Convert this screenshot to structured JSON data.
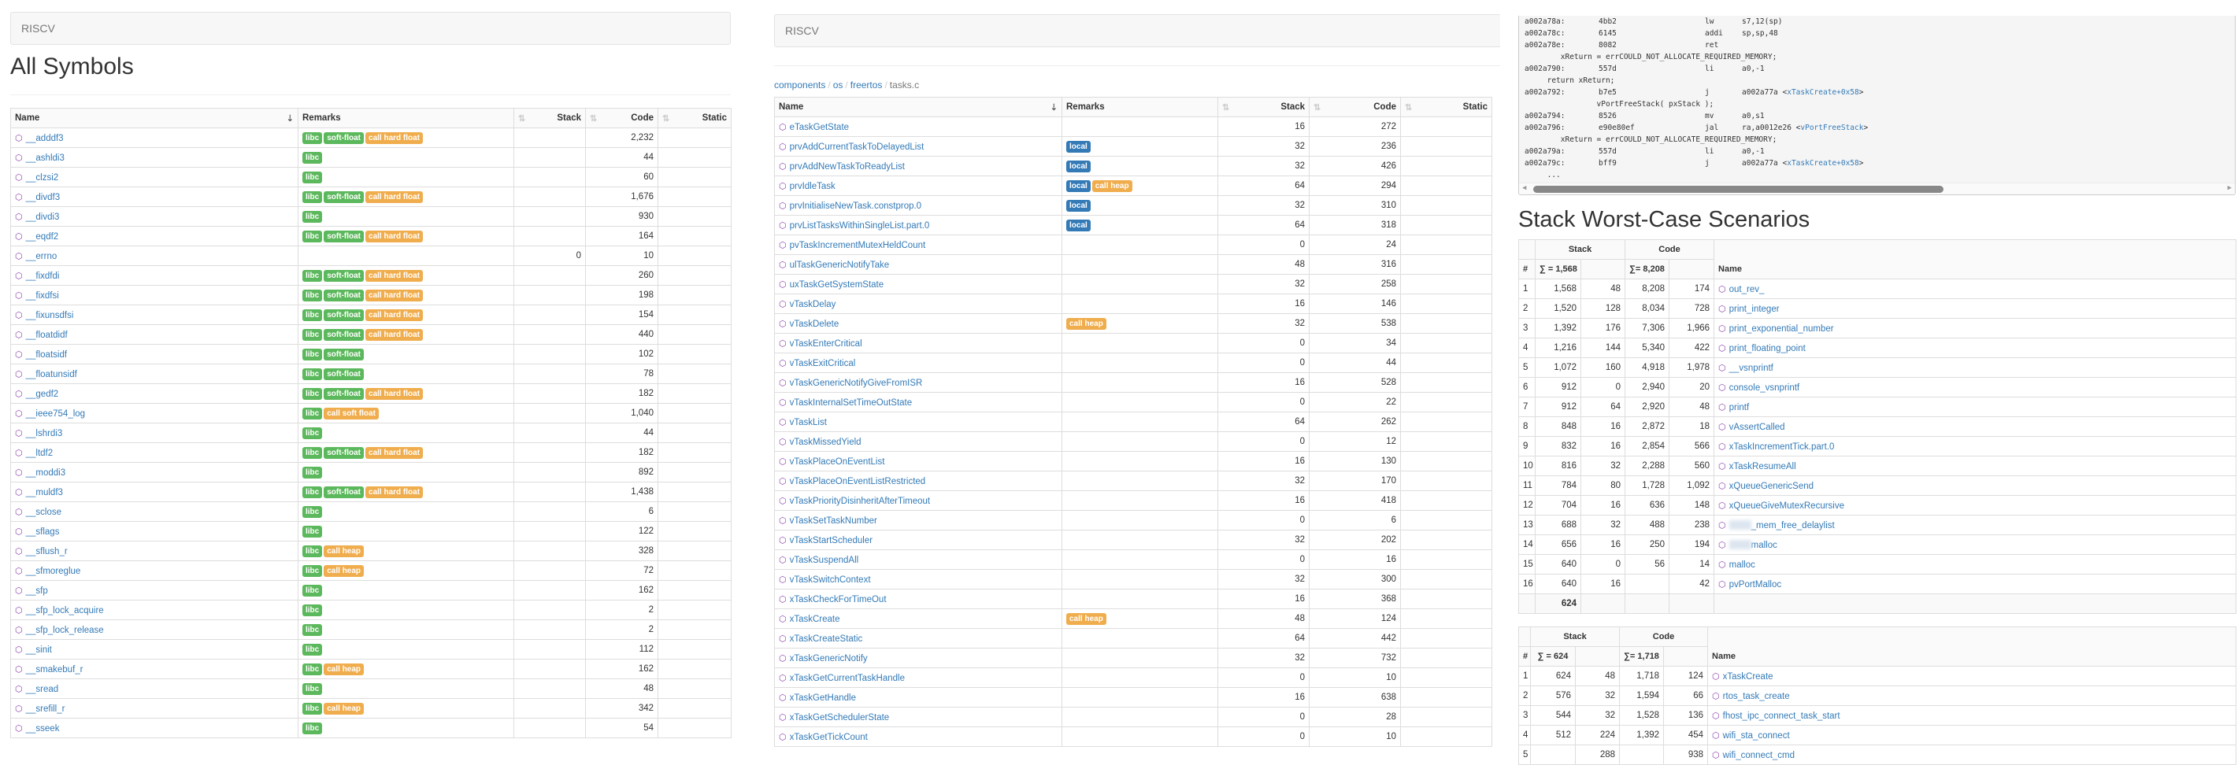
{
  "badge_colors": {
    "libc": "#5cb85c",
    "soft-float": "#5cb85c",
    "call hard float": "#f0ad4e",
    "call soft float": "#f0ad4e",
    "call heap": "#f0ad4e",
    "local": "#337ab7"
  },
  "link_color": "#337ab7",
  "icon_color": "#8e44ad",
  "left": {
    "brand": "RISCV",
    "title": "All Symbols",
    "columns": [
      "Name",
      "Remarks",
      "Stack",
      "Code",
      "Static"
    ],
    "rows": [
      [
        "__adddf3",
        [
          "libc",
          "soft-float",
          "call hard float"
        ],
        "",
        "2,232",
        ""
      ],
      [
        "__ashldi3",
        [
          "libc"
        ],
        "",
        "44",
        ""
      ],
      [
        "__clzsi2",
        [
          "libc"
        ],
        "",
        "60",
        ""
      ],
      [
        "__divdf3",
        [
          "libc",
          "soft-float",
          "call hard float"
        ],
        "",
        "1,676",
        ""
      ],
      [
        "__divdi3",
        [
          "libc"
        ],
        "",
        "930",
        ""
      ],
      [
        "__eqdf2",
        [
          "libc",
          "soft-float",
          "call hard float"
        ],
        "",
        "164",
        ""
      ],
      [
        "__errno",
        [],
        "0",
        "10",
        ""
      ],
      [
        "__fixdfdi",
        [
          "libc",
          "soft-float",
          "call hard float"
        ],
        "",
        "260",
        ""
      ],
      [
        "__fixdfsi",
        [
          "libc",
          "soft-float",
          "call hard float"
        ],
        "",
        "198",
        ""
      ],
      [
        "__fixunsdfsi",
        [
          "libc",
          "soft-float",
          "call hard float"
        ],
        "",
        "154",
        ""
      ],
      [
        "__floatdidf",
        [
          "libc",
          "soft-float",
          "call hard float"
        ],
        "",
        "440",
        ""
      ],
      [
        "__floatsidf",
        [
          "libc",
          "soft-float"
        ],
        "",
        "102",
        ""
      ],
      [
        "__floatunsidf",
        [
          "libc",
          "soft-float"
        ],
        "",
        "78",
        ""
      ],
      [
        "__gedf2",
        [
          "libc",
          "soft-float",
          "call hard float"
        ],
        "",
        "182",
        ""
      ],
      [
        "__ieee754_log",
        [
          "libc",
          "call soft float"
        ],
        "",
        "1,040",
        ""
      ],
      [
        "__lshrdi3",
        [
          "libc"
        ],
        "",
        "44",
        ""
      ],
      [
        "__ltdf2",
        [
          "libc",
          "soft-float",
          "call hard float"
        ],
        "",
        "182",
        ""
      ],
      [
        "__moddi3",
        [
          "libc"
        ],
        "",
        "892",
        ""
      ],
      [
        "__muldf3",
        [
          "libc",
          "soft-float",
          "call hard float"
        ],
        "",
        "1,438",
        ""
      ],
      [
        "__sclose",
        [
          "libc"
        ],
        "",
        "6",
        ""
      ],
      [
        "__sflags",
        [
          "libc"
        ],
        "",
        "122",
        ""
      ],
      [
        "__sflush_r",
        [
          "libc",
          "call heap"
        ],
        "",
        "328",
        ""
      ],
      [
        "__sfmoreglue",
        [
          "libc",
          "call heap"
        ],
        "",
        "72",
        ""
      ],
      [
        "__sfp",
        [
          "libc"
        ],
        "",
        "162",
        ""
      ],
      [
        "__sfp_lock_acquire",
        [
          "libc"
        ],
        "",
        "2",
        ""
      ],
      [
        "__sfp_lock_release",
        [
          "libc"
        ],
        "",
        "2",
        ""
      ],
      [
        "__sinit",
        [
          "libc"
        ],
        "",
        "112",
        ""
      ],
      [
        "__smakebuf_r",
        [
          "libc",
          "call heap"
        ],
        "",
        "162",
        ""
      ],
      [
        "__sread",
        [
          "libc"
        ],
        "",
        "48",
        ""
      ],
      [
        "__srefill_r",
        [
          "libc",
          "call heap"
        ],
        "",
        "342",
        ""
      ],
      [
        "__sseek",
        [
          "libc"
        ],
        "",
        "54",
        ""
      ]
    ]
  },
  "middle": {
    "brand": "RISCV",
    "breadcrumb": [
      "components",
      "os",
      "freertos",
      "tasks.c"
    ],
    "columns": [
      "Name",
      "Remarks",
      "Stack",
      "Code",
      "Static"
    ],
    "rows": [
      [
        "eTaskGetState",
        [],
        "16",
        "272",
        ""
      ],
      [
        "prvAddCurrentTaskToDelayedList",
        [
          "local"
        ],
        "32",
        "236",
        ""
      ],
      [
        "prvAddNewTaskToReadyList",
        [
          "local"
        ],
        "32",
        "426",
        ""
      ],
      [
        "prvIdleTask",
        [
          "local",
          "call heap"
        ],
        "64",
        "294",
        ""
      ],
      [
        "prvInitialiseNewTask.constprop.0",
        [
          "local"
        ],
        "32",
        "310",
        ""
      ],
      [
        "prvListTasksWithinSingleList.part.0",
        [
          "local"
        ],
        "64",
        "318",
        ""
      ],
      [
        "pvTaskIncrementMutexHeldCount",
        [],
        "0",
        "24",
        ""
      ],
      [
        "ulTaskGenericNotifyTake",
        [],
        "48",
        "316",
        ""
      ],
      [
        "uxTaskGetSystemState",
        [],
        "32",
        "258",
        ""
      ],
      [
        "vTaskDelay",
        [],
        "16",
        "146",
        ""
      ],
      [
        "vTaskDelete",
        [
          "call heap"
        ],
        "32",
        "538",
        ""
      ],
      [
        "vTaskEnterCritical",
        [],
        "0",
        "34",
        ""
      ],
      [
        "vTaskExitCritical",
        [],
        "0",
        "44",
        ""
      ],
      [
        "vTaskGenericNotifyGiveFromISR",
        [],
        "16",
        "528",
        ""
      ],
      [
        "vTaskInternalSetTimeOutState",
        [],
        "0",
        "22",
        ""
      ],
      [
        "vTaskList",
        [],
        "64",
        "262",
        ""
      ],
      [
        "vTaskMissedYield",
        [],
        "0",
        "12",
        ""
      ],
      [
        "vTaskPlaceOnEventList",
        [],
        "16",
        "130",
        ""
      ],
      [
        "vTaskPlaceOnEventListRestricted",
        [],
        "32",
        "170",
        ""
      ],
      [
        "vTaskPriorityDisinheritAfterTimeout",
        [],
        "16",
        "418",
        ""
      ],
      [
        "vTaskSetTaskNumber",
        [],
        "0",
        "6",
        ""
      ],
      [
        "vTaskStartScheduler",
        [],
        "32",
        "202",
        ""
      ],
      [
        "vTaskSuspendAll",
        [],
        "0",
        "16",
        ""
      ],
      [
        "vTaskSwitchContext",
        [],
        "32",
        "300",
        ""
      ],
      [
        "xTaskCheckForTimeOut",
        [],
        "16",
        "368",
        ""
      ],
      [
        "xTaskCreate",
        [
          "call heap"
        ],
        "48",
        "124",
        ""
      ],
      [
        "xTaskCreateStatic",
        [],
        "64",
        "442",
        ""
      ],
      [
        "xTaskGenericNotify",
        [],
        "32",
        "732",
        ""
      ],
      [
        "xTaskGetCurrentTaskHandle",
        [],
        "0",
        "10",
        ""
      ],
      [
        "xTaskGetHandle",
        [],
        "16",
        "638",
        ""
      ],
      [
        "xTaskGetSchedulerState",
        [],
        "0",
        "28",
        ""
      ],
      [
        "xTaskGetTickCount",
        [],
        "0",
        "10",
        ""
      ]
    ]
  },
  "disasm": {
    "lines": [
      {
        "addr": "a002a78a:",
        "hex": "4bb2",
        "op": "lw",
        "args": "s7,12(sp)"
      },
      {
        "addr": "a002a78c:",
        "hex": "6145",
        "op": "addi",
        "args": "sp,sp,48"
      },
      {
        "addr": "a002a78e:",
        "hex": "8082",
        "op": "ret",
        "args": ""
      },
      {
        "src": "        xReturn = errCOULD_NOT_ALLOCATE_REQUIRED_MEMORY;"
      },
      {
        "addr": "a002a790:",
        "hex": "557d",
        "op": "li",
        "args": "a0,-1"
      },
      {
        "src": "     return xReturn;"
      },
      {
        "addr": "a002a792:",
        "hex": "b7e5",
        "op": "j",
        "args": "a002a77a ",
        "link": "xTaskCreate+0x58"
      },
      {
        "src": "                vPortFreeStack( pxStack );"
      },
      {
        "addr": "a002a794:",
        "hex": "8526",
        "op": "mv",
        "args": "a0,s1"
      },
      {
        "addr": "a002a796:",
        "hex": "e90e80ef",
        "op": "jal",
        "args": "ra,a0012e26 ",
        "link": "vPortFreeStack"
      },
      {
        "src": "        xReturn = errCOULD_NOT_ALLOCATE_REQUIRED_MEMORY;"
      },
      {
        "addr": "a002a79a:",
        "hex": "557d",
        "op": "li",
        "args": "a0,-1"
      },
      {
        "addr": "a002a79c:",
        "hex": "bff9",
        "op": "j",
        "args": "a002a77a ",
        "link": "xTaskCreate+0x58"
      },
      {
        "src": "     ..."
      }
    ]
  },
  "worst": {
    "title": "Stack Worst-Case Scenarios",
    "tables": [
      {
        "stack_label": "Stack",
        "code_label": "Code",
        "hash": "#",
        "stack_sum": "∑ = 1,568",
        "code_sum": "∑= 8,208",
        "name_label": "Name",
        "rows": [
          [
            "1",
            "1,568",
            "48",
            "8,208",
            "174",
            "out_rev_"
          ],
          [
            "2",
            "1,520",
            "128",
            "8,034",
            "728",
            "print_integer"
          ],
          [
            "3",
            "1,392",
            "176",
            "7,306",
            "1,966",
            "print_exponential_number"
          ],
          [
            "4",
            "1,216",
            "144",
            "5,340",
            "422",
            "print_floating_point"
          ],
          [
            "5",
            "1,072",
            "160",
            "4,918",
            "1,978",
            "__vsnprintf"
          ],
          [
            "6",
            "912",
            "0",
            "2,940",
            "20",
            "console_vsnprintf"
          ],
          [
            "7",
            "912",
            "64",
            "2,920",
            "48",
            "printf"
          ],
          [
            "8",
            "848",
            "16",
            "2,872",
            "18",
            "vAssertCalled"
          ],
          [
            "9",
            "832",
            "16",
            "2,854",
            "566",
            "xTaskIncrementTick.part.0"
          ],
          [
            "10",
            "816",
            "32",
            "2,288",
            "560",
            "xTaskResumeAll"
          ],
          [
            "11",
            "784",
            "80",
            "1,728",
            "1,092",
            "xQueueGenericSend"
          ],
          [
            "12",
            "704",
            "16",
            "636",
            "148",
            "xQueueGiveMutexRecursive"
          ],
          [
            "13",
            "688",
            "32",
            "488",
            "238",
            "_mem_free_delaylist"
          ],
          [
            "14",
            "656",
            "16",
            "250",
            "194",
            "malloc"
          ],
          [
            "15",
            "640",
            "0",
            "56",
            "14",
            "malloc"
          ],
          [
            "16",
            "640",
            "16",
            "",
            "42",
            "pvPortMalloc"
          ]
        ],
        "footer": "624"
      },
      {
        "stack_label": "Stack",
        "code_label": "Code",
        "hash": "#",
        "stack_sum": "∑ = 624",
        "code_sum": "∑= 1,718",
        "name_label": "Name",
        "rows": [
          [
            "1",
            "624",
            "48",
            "1,718",
            "124",
            "xTaskCreate"
          ],
          [
            "2",
            "576",
            "32",
            "1,594",
            "66",
            "rtos_task_create"
          ],
          [
            "3",
            "544",
            "32",
            "1,528",
            "136",
            "fhost_ipc_connect_task_start"
          ],
          [
            "4",
            "512",
            "224",
            "1,392",
            "454",
            "wifi_sta_connect"
          ],
          [
            "5",
            "",
            "288",
            "",
            "938",
            "wifi_connect_cmd"
          ]
        ]
      }
    ]
  }
}
